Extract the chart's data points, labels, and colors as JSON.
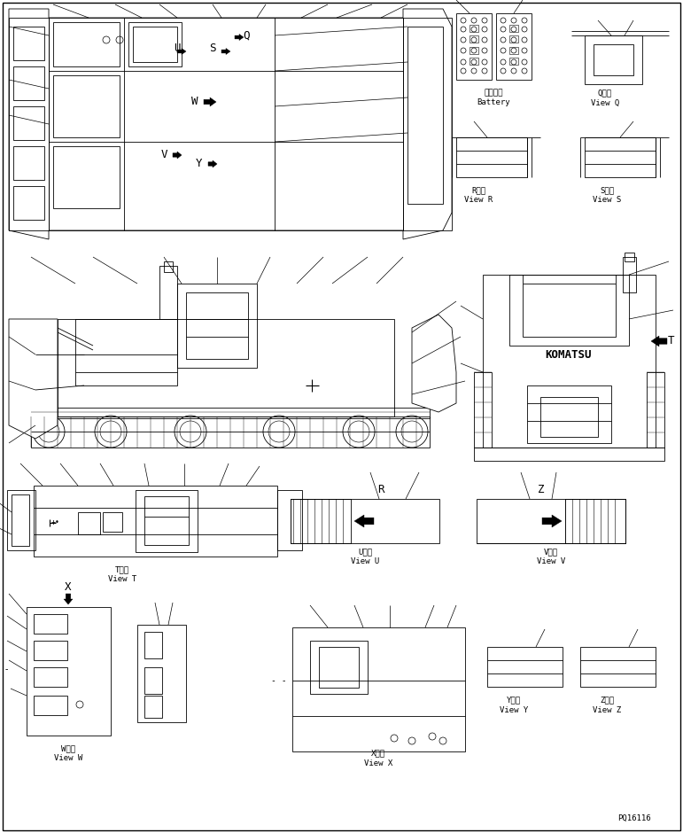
{
  "bg_color": "#ffffff",
  "line_color": "#000000",
  "fig_width": 7.71,
  "fig_height": 9.4,
  "dpi": 100,
  "page_code": "PQ16116",
  "labels": {
    "battery_jp": "バッテリ",
    "battery_en": "Battery",
    "view_Q_jp": "Q　視",
    "view_Q_en": "View Q",
    "view_R_jp": "R　視",
    "view_R_en": "View R",
    "view_S_jp": "S　視",
    "view_S_en": "View S",
    "view_T_jp": "T　視",
    "view_T_en": "View T",
    "view_U_jp": "U　視",
    "view_U_en": "View U",
    "view_V_jp": "V　視",
    "view_V_en": "View V",
    "view_W_jp": "W　視",
    "view_W_en": "View W",
    "view_X_jp": "X　視",
    "view_X_en": "View X",
    "view_Y_jp": "Y　視",
    "view_Y_en": "View Y",
    "view_Z_jp": "Z　視",
    "view_Z_en": "View Z",
    "komatsu": "KOMATSU"
  },
  "font_size_small": 5.5,
  "font_size_label": 6.5,
  "font_size_med": 8.0,
  "font_size_large": 9.0
}
